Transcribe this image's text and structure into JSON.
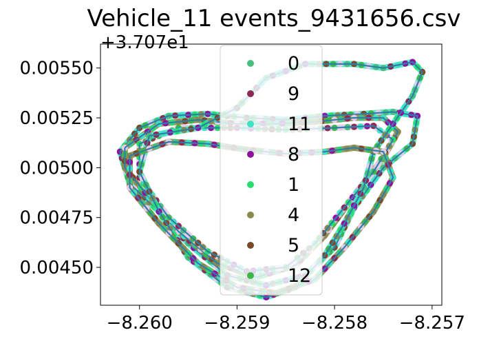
{
  "chart_data": {
    "type": "scatter",
    "title": "Vehicle_11 events_9431656.csv",
    "offset_label": "+3.707e1",
    "xlabel": "",
    "ylabel": "",
    "xlim": [
      -8.2604,
      -8.2569
    ],
    "ylim": [
      0.00431,
      0.00562
    ],
    "x_ticks": [
      -8.26,
      -8.259,
      -8.258,
      -8.257
    ],
    "x_tick_labels": [
      "−8.260",
      "−8.259",
      "−8.258",
      "−8.257"
    ],
    "y_ticks": [
      0.0045,
      0.00475,
      0.005,
      0.00525,
      0.0055
    ],
    "y_tick_labels": [
      "0.00450",
      "0.00475",
      "0.00500",
      "0.00525",
      "0.00550"
    ],
    "grid": false,
    "legend_position": "top-center",
    "route_line_color": "#2e7fa8",
    "series": [
      {
        "name": "0",
        "color": "#48bf7f"
      },
      {
        "name": "9",
        "color": "#8c2a55"
      },
      {
        "name": "11",
        "color": "#3fe3c4"
      },
      {
        "name": "8",
        "color": "#8e11a0"
      },
      {
        "name": "1",
        "color": "#25de6d"
      },
      {
        "name": "4",
        "color": "#888a4f"
      },
      {
        "name": "5",
        "color": "#7c4a29"
      },
      {
        "name": "12",
        "color": "#3cb84a"
      }
    ],
    "highlight_color": "#e6cce6",
    "loops": [
      [
        [
          -8.2602,
          0.00508
        ],
        [
          -8.26,
          0.0052
        ],
        [
          -8.2597,
          0.00526
        ],
        [
          -8.2593,
          0.00527
        ],
        [
          -8.2589,
          0.00525
        ],
        [
          -8.2585,
          0.00524
        ],
        [
          -8.2581,
          0.00526
        ],
        [
          -8.2577,
          0.00527
        ],
        [
          -8.2574,
          0.00528
        ],
        [
          -8.25715,
          0.00526
        ],
        [
          -8.2572,
          0.00512
        ],
        [
          -8.2575,
          0.005
        ],
        [
          -8.2578,
          0.0048
        ],
        [
          -8.258,
          0.0046
        ],
        [
          -8.2583,
          0.00446
        ],
        [
          -8.2587,
          0.00441
        ],
        [
          -8.2591,
          0.00446
        ],
        [
          -8.2595,
          0.00462
        ],
        [
          -8.2598,
          0.00478
        ],
        [
          -8.2601,
          0.00492
        ],
        [
          -8.2602,
          0.00508
        ]
      ],
      [
        [
          -8.26015,
          0.0051
        ],
        [
          -8.2598,
          0.00522
        ],
        [
          -8.2594,
          0.00524
        ],
        [
          -8.259,
          0.00522
        ],
        [
          -8.2586,
          0.00522
        ],
        [
          -8.2582,
          0.00523
        ],
        [
          -8.2578,
          0.00525
        ],
        [
          -8.2575,
          0.00525
        ],
        [
          -8.25735,
          0.00518
        ],
        [
          -8.2575,
          0.00505
        ],
        [
          -8.2578,
          0.00486
        ],
        [
          -8.2581,
          0.00466
        ],
        [
          -8.2584,
          0.00451
        ],
        [
          -8.2588,
          0.00445
        ],
        [
          -8.2592,
          0.00452
        ],
        [
          -8.2596,
          0.00468
        ],
        [
          -8.2599,
          0.00485
        ],
        [
          -8.26015,
          0.005
        ],
        [
          -8.26015,
          0.0051
        ]
      ],
      [
        [
          -8.26,
          0.00512
        ],
        [
          -8.2596,
          0.0052
        ],
        [
          -8.259,
          0.0052
        ],
        [
          -8.2585,
          0.00519
        ],
        [
          -8.258,
          0.0052
        ],
        [
          -8.2576,
          0.00521
        ],
        [
          -8.2574,
          0.00514
        ],
        [
          -8.2576,
          0.00498
        ],
        [
          -8.2579,
          0.0048
        ],
        [
          -8.2582,
          0.00462
        ],
        [
          -8.2585,
          0.0045
        ],
        [
          -8.2589,
          0.00448
        ],
        [
          -8.2593,
          0.00458
        ],
        [
          -8.2597,
          0.00475
        ],
        [
          -8.26,
          0.00495
        ],
        [
          -8.26,
          0.00512
        ]
      ],
      [
        [
          -8.2599,
          0.00516
        ],
        [
          -8.2594,
          0.0052
        ],
        [
          -8.259,
          0.0053
        ],
        [
          -8.2587,
          0.00545
        ],
        [
          -8.2583,
          0.00552
        ],
        [
          -8.2578,
          0.00552
        ],
        [
          -8.2575,
          0.0055
        ],
        [
          -8.2572,
          0.00553
        ],
        [
          -8.2571,
          0.00548
        ],
        [
          -8.2572,
          0.00536
        ],
        [
          -8.2574,
          0.00522
        ],
        [
          -8.2576,
          0.00508
        ],
        [
          -8.2577,
          0.0049
        ],
        [
          -8.2579,
          0.00472
        ],
        [
          -8.2581,
          0.00456
        ],
        [
          -8.2584,
          0.0044
        ],
        [
          -8.2587,
          0.00435
        ],
        [
          -8.2591,
          0.0044
        ],
        [
          -8.2595,
          0.00455
        ],
        [
          -8.2598,
          0.00478
        ],
        [
          -8.26,
          0.00498
        ],
        [
          -8.2599,
          0.00516
        ]
      ],
      [
        [
          -8.2601,
          0.00506
        ],
        [
          -8.2597,
          0.00513
        ],
        [
          -8.2593,
          0.00512
        ],
        [
          -8.2589,
          0.00509
        ],
        [
          -8.2585,
          0.00507
        ],
        [
          -8.2581,
          0.00508
        ],
        [
          -8.2578,
          0.0051
        ],
        [
          -8.2575,
          0.00508
        ],
        [
          -8.2574,
          0.00495
        ],
        [
          -8.2576,
          0.00478
        ],
        [
          -8.2579,
          0.0046
        ],
        [
          -8.2582,
          0.00444
        ],
        [
          -8.2586,
          0.00437
        ],
        [
          -8.259,
          0.0044
        ],
        [
          -8.2594,
          0.00452
        ],
        [
          -8.2598,
          0.00472
        ],
        [
          -8.2601,
          0.0049
        ],
        [
          -8.2601,
          0.00506
        ]
      ]
    ]
  }
}
